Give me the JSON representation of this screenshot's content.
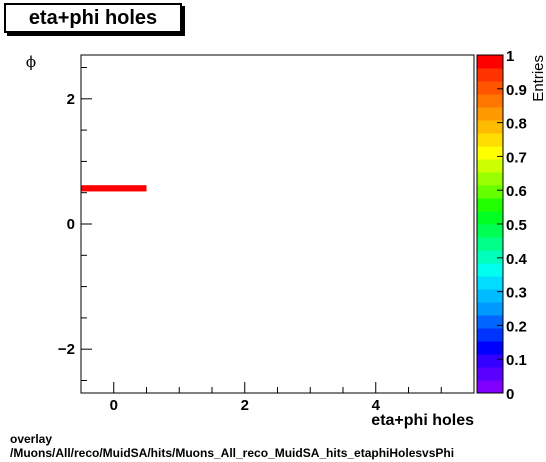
{
  "title": "eta+phi holes",
  "footer": {
    "line1": "overlay",
    "line2": "/Muons/All/reco/MuidSA/hits/Muons_All_reco_MuidSA_hits_etaphiHolesvsPhi"
  },
  "chart_data": {
    "type": "heatmap",
    "title": "eta+phi holes",
    "xlabel": "eta+phi holes",
    "ylabel": "ϕ",
    "zlabel": "Entries",
    "xlim": [
      -0.5,
      5.5
    ],
    "ylim": [
      -2.7,
      2.7
    ],
    "zlim": [
      0,
      1
    ],
    "x_ticks": [
      0,
      2,
      4
    ],
    "x_tick_labels": [
      "0",
      "2",
      "4"
    ],
    "y_ticks": [
      -2,
      0,
      2
    ],
    "y_tick_labels": [
      "−2",
      "0",
      "2"
    ],
    "z_ticks": [
      0,
      0.1,
      0.2,
      0.3,
      0.4,
      0.5,
      0.6,
      0.7,
      0.8,
      0.9,
      1
    ],
    "z_tick_labels": [
      "0",
      "0.1",
      "0.2",
      "0.3",
      "0.4",
      "0.5",
      "0.6",
      "0.7",
      "0.8",
      "0.9",
      "1"
    ],
    "cells": [
      {
        "x0": -0.5,
        "x1": 0.5,
        "y0": 0.52,
        "y1": 0.62,
        "value": 1
      }
    ],
    "palette": [
      "#7f00ff",
      "#5a00ff",
      "#3300ff",
      "#0000ff",
      "#0033ff",
      "#0066ff",
      "#0099ff",
      "#00bbff",
      "#00ddff",
      "#00ffee",
      "#00ffbb",
      "#00ff88",
      "#00ff55",
      "#00ff22",
      "#22ff00",
      "#66ff00",
      "#99ff00",
      "#ccff00",
      "#ffff00",
      "#ffdd00",
      "#ffbb00",
      "#ff9900",
      "#ff7700",
      "#ff5500",
      "#ff3300",
      "#ff0000"
    ],
    "grid": false
  }
}
